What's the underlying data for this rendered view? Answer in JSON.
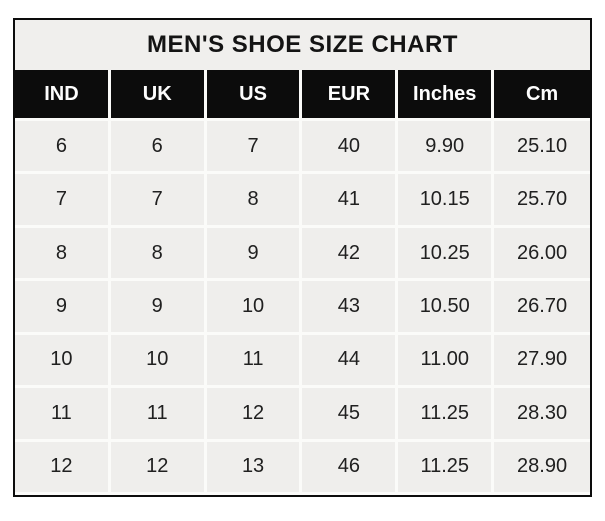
{
  "chart_data": {
    "type": "table",
    "title": "MEN'S SHOE SIZE CHART",
    "columns": [
      "IND",
      "UK",
      "US",
      "EUR",
      "Inches",
      "Cm"
    ],
    "rows": [
      [
        "6",
        "6",
        "7",
        "40",
        "9.90",
        "25.10"
      ],
      [
        "7",
        "7",
        "8",
        "41",
        "10.15",
        "25.70"
      ],
      [
        "8",
        "8",
        "9",
        "42",
        "10.25",
        "26.00"
      ],
      [
        "9",
        "9",
        "10",
        "43",
        "10.50",
        "26.70"
      ],
      [
        "10",
        "10",
        "11",
        "44",
        "11.00",
        "27.90"
      ],
      [
        "11",
        "11",
        "12",
        "45",
        "11.25",
        "28.30"
      ],
      [
        "12",
        "12",
        "13",
        "46",
        "11.25",
        "28.90"
      ]
    ],
    "layout": {
      "legend": "none",
      "grid": "white separators between gray cells",
      "header_position": "top"
    },
    "colors": {
      "outer_border": "#0c0c0c",
      "title_background": "#f0efed",
      "header_background": "#0c0c0c",
      "header_text": "#fdfdfd",
      "cell_background": "#efeeec",
      "separator": "#fbfbf9",
      "body_text": "#202020",
      "page_background": "#ffffff"
    }
  }
}
